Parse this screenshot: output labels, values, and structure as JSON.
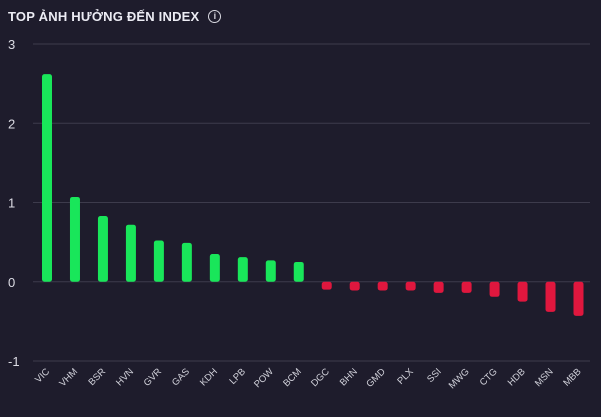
{
  "header": {
    "title": "TOP ẢNH HƯỞNG ĐẾN INDEX",
    "info_icon": "info-circle-icon"
  },
  "colors": {
    "background": "#1e1c2c",
    "positive": "#19e65a",
    "negative": "#e0173e",
    "grid": "#3d3b4c"
  },
  "chart_data": {
    "type": "bar",
    "title": "TOP ẢNH HƯỞNG ĐẾN INDEX",
    "categories": [
      "VIC",
      "VHM",
      "BSR",
      "HVN",
      "GVR",
      "GAS",
      "KDH",
      "LPB",
      "POW",
      "BCM",
      "DGC",
      "BHN",
      "GMD",
      "PLX",
      "SSI",
      "MWG",
      "CTG",
      "HDB",
      "MSN",
      "MBB"
    ],
    "values": [
      2.62,
      1.07,
      0.83,
      0.72,
      0.52,
      0.49,
      0.35,
      0.31,
      0.27,
      0.25,
      -0.1,
      -0.11,
      -0.11,
      -0.11,
      -0.14,
      -0.14,
      -0.19,
      -0.25,
      -0.38,
      -0.43
    ],
    "yticks": [
      -1,
      0,
      1,
      2,
      3
    ],
    "ylim": [
      -1,
      3
    ],
    "grid": true,
    "xlabel": "",
    "ylabel": ""
  }
}
